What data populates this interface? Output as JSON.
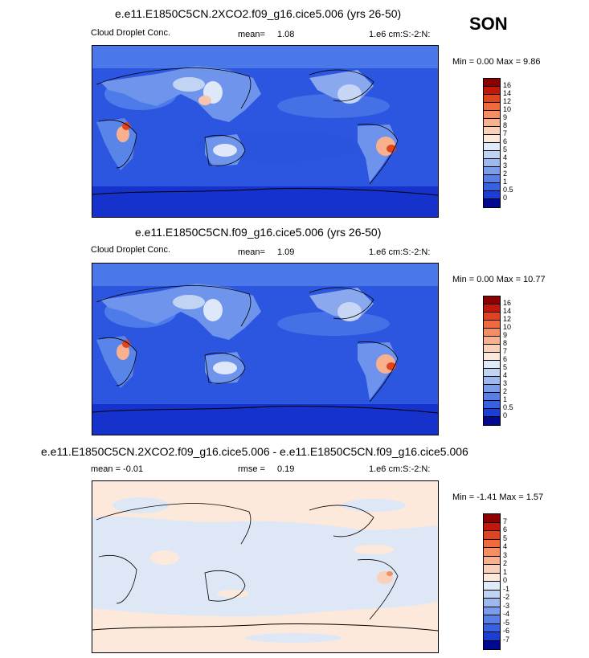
{
  "season": "SON",
  "panels": [
    {
      "title": "e.e11.E1850C5CN.2XCO2.f09_g16.cice5.006 (yrs 26-50)",
      "left_label": "Cloud Droplet Conc.",
      "stat_label": "mean=",
      "stat_value": "1.08",
      "units": "1.e6 cm:S:-2:N:",
      "minmax": "Min =   0.00 Max =   9.86",
      "colorbar_labels": [
        "16",
        "14",
        "12",
        "10",
        "9",
        "8",
        "7",
        "6",
        "5",
        "4",
        "3",
        "2",
        "1",
        "0.5",
        "0"
      ],
      "colors": [
        "#8b0000",
        "#c4170c",
        "#e0441f",
        "#f06a3c",
        "#f58e62",
        "#f8b08e",
        "#fbd0b8",
        "#fde9dc",
        "#e0eaf8",
        "#c0d3f3",
        "#9db8ee",
        "#7a9cea",
        "#577fe6",
        "#3661e2",
        "#1a3ed6",
        "#00098f"
      ]
    },
    {
      "title": "e.e11.E1850C5CN.f09_g16.cice5.006 (yrs 26-50)",
      "left_label": "Cloud Droplet Conc.",
      "stat_label": "mean=",
      "stat_value": "1.09",
      "units": "1.e6 cm:S:-2:N:",
      "minmax": "Min =   0.00 Max =  10.77",
      "colorbar_labels": [
        "16",
        "14",
        "12",
        "10",
        "9",
        "8",
        "7",
        "6",
        "5",
        "4",
        "3",
        "2",
        "1",
        "0.5",
        "0"
      ],
      "colors": [
        "#8b0000",
        "#c4170c",
        "#e0441f",
        "#f06a3c",
        "#f58e62",
        "#f8b08e",
        "#fbd0b8",
        "#fde9dc",
        "#e0eaf8",
        "#c0d3f3",
        "#9db8ee",
        "#7a9cea",
        "#577fe6",
        "#3661e2",
        "#1a3ed6",
        "#00098f"
      ]
    },
    {
      "title": "e.e11.E1850C5CN.2XCO2.f09_g16.cice5.006 - e.e11.E1850C5CN.f09_g16.cice5.006",
      "left_label": "mean =  -0.01",
      "stat_label": "rmse =",
      "stat_value": "0.19",
      "units": "1.e6 cm:S:-2:N:",
      "minmax": "Min =  -1.41 Max =   1.57",
      "colorbar_labels": [
        "7",
        "6",
        "5",
        "4",
        "3",
        "2",
        "1",
        "0",
        "-1",
        "-2",
        "-3",
        "-4",
        "-5",
        "-6",
        "-7"
      ],
      "colors": [
        "#8b0000",
        "#c4170c",
        "#e0441f",
        "#f06a3c",
        "#f58e62",
        "#f8b08e",
        "#fbd0b8",
        "#fde9dc",
        "#e0eaf8",
        "#c0d3f3",
        "#9db8ee",
        "#7a9cea",
        "#577fe6",
        "#3661e2",
        "#1a3ed6",
        "#00098f"
      ]
    }
  ],
  "chart_data": [
    {
      "type": "heatmap",
      "title": "e.e11.E1850C5CN.2XCO2.f09_g16.cice5.006 (yrs 26-50)",
      "variable": "Cloud Droplet Conc.",
      "units": "1.e6 cm:S:-2:N:",
      "mean": 1.08,
      "min": 0.0,
      "max": 9.86,
      "levels": [
        0,
        0.5,
        1,
        2,
        3,
        4,
        5,
        6,
        7,
        8,
        9,
        10,
        12,
        14,
        16
      ]
    },
    {
      "type": "heatmap",
      "title": "e.e11.E1850C5CN.f09_g16.cice5.006 (yrs 26-50)",
      "variable": "Cloud Droplet Conc.",
      "units": "1.e6 cm:S:-2:N:",
      "mean": 1.09,
      "min": 0.0,
      "max": 10.77,
      "levels": [
        0,
        0.5,
        1,
        2,
        3,
        4,
        5,
        6,
        7,
        8,
        9,
        10,
        12,
        14,
        16
      ]
    },
    {
      "type": "heatmap",
      "title": "e.e11.E1850C5CN.2XCO2.f09_g16.cice5.006 - e.e11.E1850C5CN.f09_g16.cice5.006",
      "units": "1.e6 cm:S:-2:N:",
      "mean": -0.01,
      "rmse": 0.19,
      "min": -1.41,
      "max": 1.57,
      "levels": [
        -7,
        -6,
        -5,
        -4,
        -3,
        -2,
        -1,
        0,
        1,
        2,
        3,
        4,
        5,
        6,
        7
      ]
    }
  ]
}
